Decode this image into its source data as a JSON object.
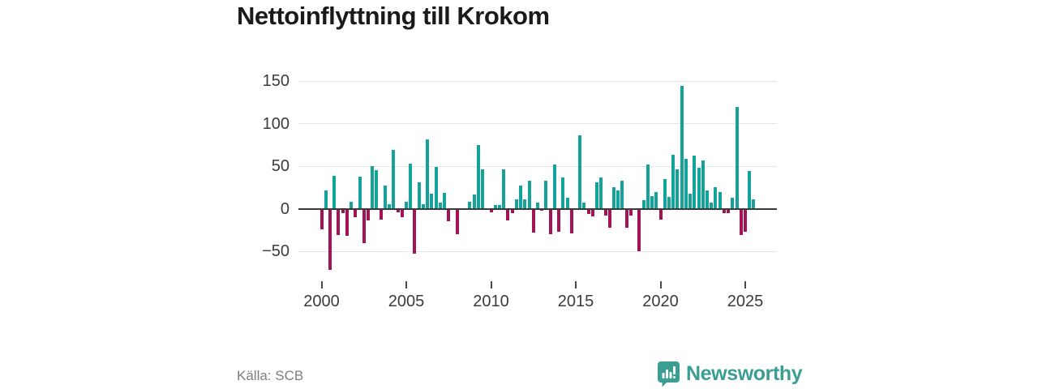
{
  "chart_data": {
    "type": "bar",
    "title": "Nettoinflyttning till Krokom",
    "frequency": "quarterly",
    "start_period": "2000Q1",
    "end_period": "2025Q3",
    "values": [
      -24,
      21,
      -72,
      39,
      -31,
      -5,
      -32,
      8,
      -10,
      38,
      -40,
      -14,
      50,
      45,
      -13,
      27,
      5,
      69,
      -4,
      -10,
      8,
      53,
      -53,
      31,
      5,
      81,
      18,
      49,
      7,
      19,
      -15,
      0,
      -30,
      0,
      0,
      8,
      17,
      75,
      46,
      0,
      -4,
      4,
      4,
      46,
      -14,
      -5,
      11,
      27,
      11,
      33,
      -28,
      7,
      -2,
      33,
      -30,
      52,
      -27,
      37,
      13,
      -29,
      0,
      86,
      7,
      -6,
      -9,
      31,
      37,
      -8,
      -22,
      25,
      21,
      33,
      -22,
      -8,
      0,
      -50,
      10,
      52,
      15,
      20,
      -13,
      35,
      14,
      63,
      46,
      144,
      59,
      18,
      62,
      48,
      57,
      21,
      7,
      25,
      20,
      -5,
      -5,
      13,
      120,
      -31,
      -27,
      44,
      11
    ],
    "yticks": [
      150,
      100,
      50,
      0,
      -50
    ],
    "ylim": [
      -80,
      155
    ],
    "xticks": [
      2000,
      2005,
      2010,
      2015,
      2020,
      2025
    ],
    "grid": true,
    "legend": "none",
    "positive_color": "#13a39a",
    "negative_color": "#a41355"
  },
  "footer": {
    "source": "Källa: SCB",
    "brand": "Newsworthy",
    "brand_color": "#3b9e93"
  }
}
